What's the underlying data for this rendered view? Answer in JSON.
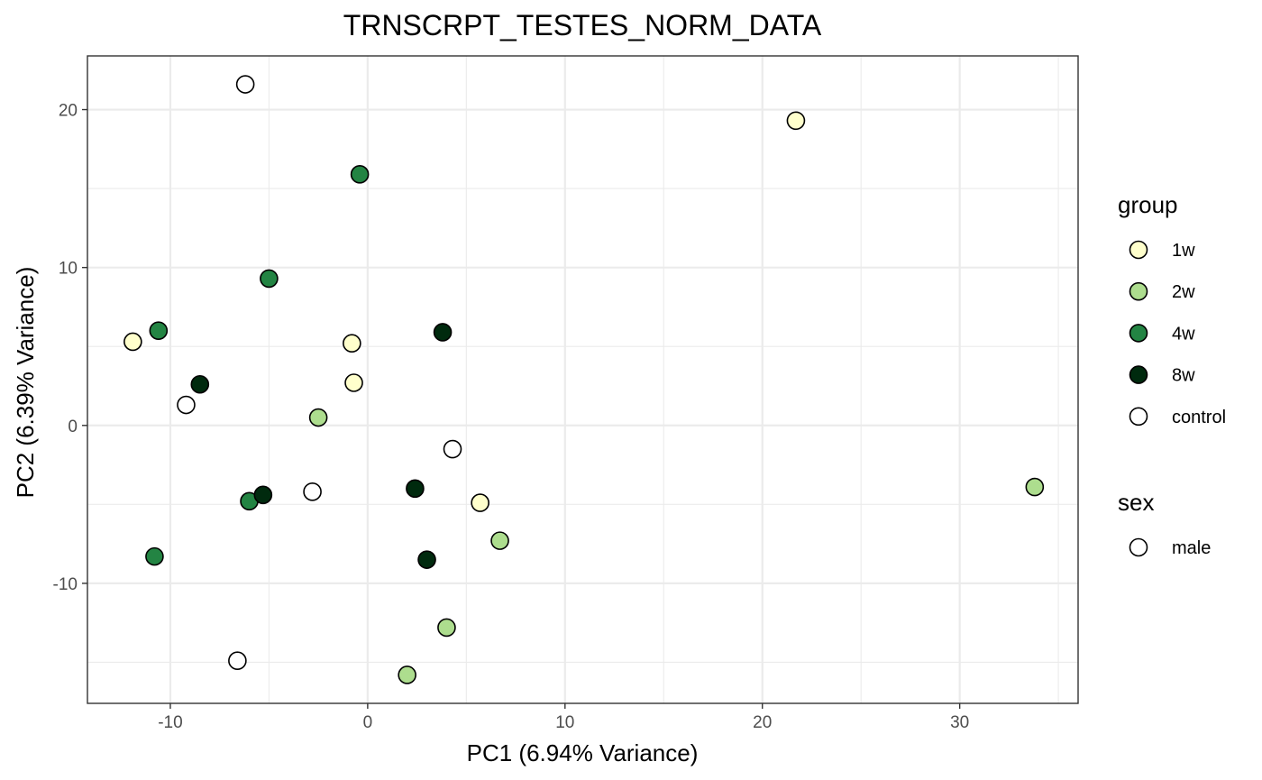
{
  "chart_data": {
    "type": "scatter",
    "title": "TRNSCRPT_TESTES_NORM_DATA",
    "xlabel": "PC1 (6.94% Variance)",
    "ylabel": "PC2 (6.39% Variance)",
    "xlim": [
      -14.2,
      36
    ],
    "ylim": [
      -17.6,
      23.4
    ],
    "x_ticks": [
      -10,
      0,
      10,
      20,
      30
    ],
    "y_ticks": [
      -10,
      0,
      10,
      20
    ],
    "x_tick_labels": [
      "-10",
      "0",
      "10",
      "20",
      "30"
    ],
    "y_tick_labels": [
      "-10",
      "0",
      "10",
      "20"
    ],
    "grid": true,
    "legend_position": "right",
    "legend": {
      "group_title": "group",
      "groups": [
        {
          "label": "1w",
          "color": "#ffffcc"
        },
        {
          "label": "2w",
          "color": "#addd8e"
        },
        {
          "label": "4w",
          "color": "#238443"
        },
        {
          "label": "8w",
          "color": "#002a0e"
        },
        {
          "label": "control",
          "color": "#ffffff"
        }
      ],
      "sex_title": "sex",
      "sexes": [
        {
          "label": "male",
          "shape": "circle"
        }
      ]
    },
    "series": [
      {
        "name": "1w",
        "color": "#ffffcc",
        "points": [
          [
            21.7,
            19.3
          ],
          [
            -11.9,
            5.3
          ],
          [
            -0.8,
            5.2
          ],
          [
            -0.7,
            2.7
          ],
          [
            5.7,
            -4.9
          ]
        ]
      },
      {
        "name": "2w",
        "color": "#addd8e",
        "points": [
          [
            33.8,
            -3.9
          ],
          [
            -2.5,
            0.5
          ],
          [
            6.7,
            -7.3
          ],
          [
            4.0,
            -12.8
          ],
          [
            2.0,
            -15.8
          ]
        ]
      },
      {
        "name": "4w",
        "color": "#238443",
        "points": [
          [
            -0.4,
            15.9
          ],
          [
            -5.0,
            9.3
          ],
          [
            -10.6,
            6.0
          ],
          [
            -6.0,
            -4.8
          ],
          [
            -10.8,
            -8.3
          ]
        ]
      },
      {
        "name": "8w",
        "color": "#002a0e",
        "points": [
          [
            3.8,
            5.9
          ],
          [
            -8.5,
            2.6
          ],
          [
            -5.3,
            -4.4
          ],
          [
            2.4,
            -4.0
          ],
          [
            3.0,
            -8.5
          ]
        ]
      },
      {
        "name": "control",
        "color": "#ffffff",
        "points": [
          [
            -6.2,
            21.6
          ],
          [
            -9.2,
            1.3
          ],
          [
            4.3,
            -1.5
          ],
          [
            -2.8,
            -4.2
          ],
          [
            -6.6,
            -14.9
          ]
        ]
      }
    ]
  }
}
